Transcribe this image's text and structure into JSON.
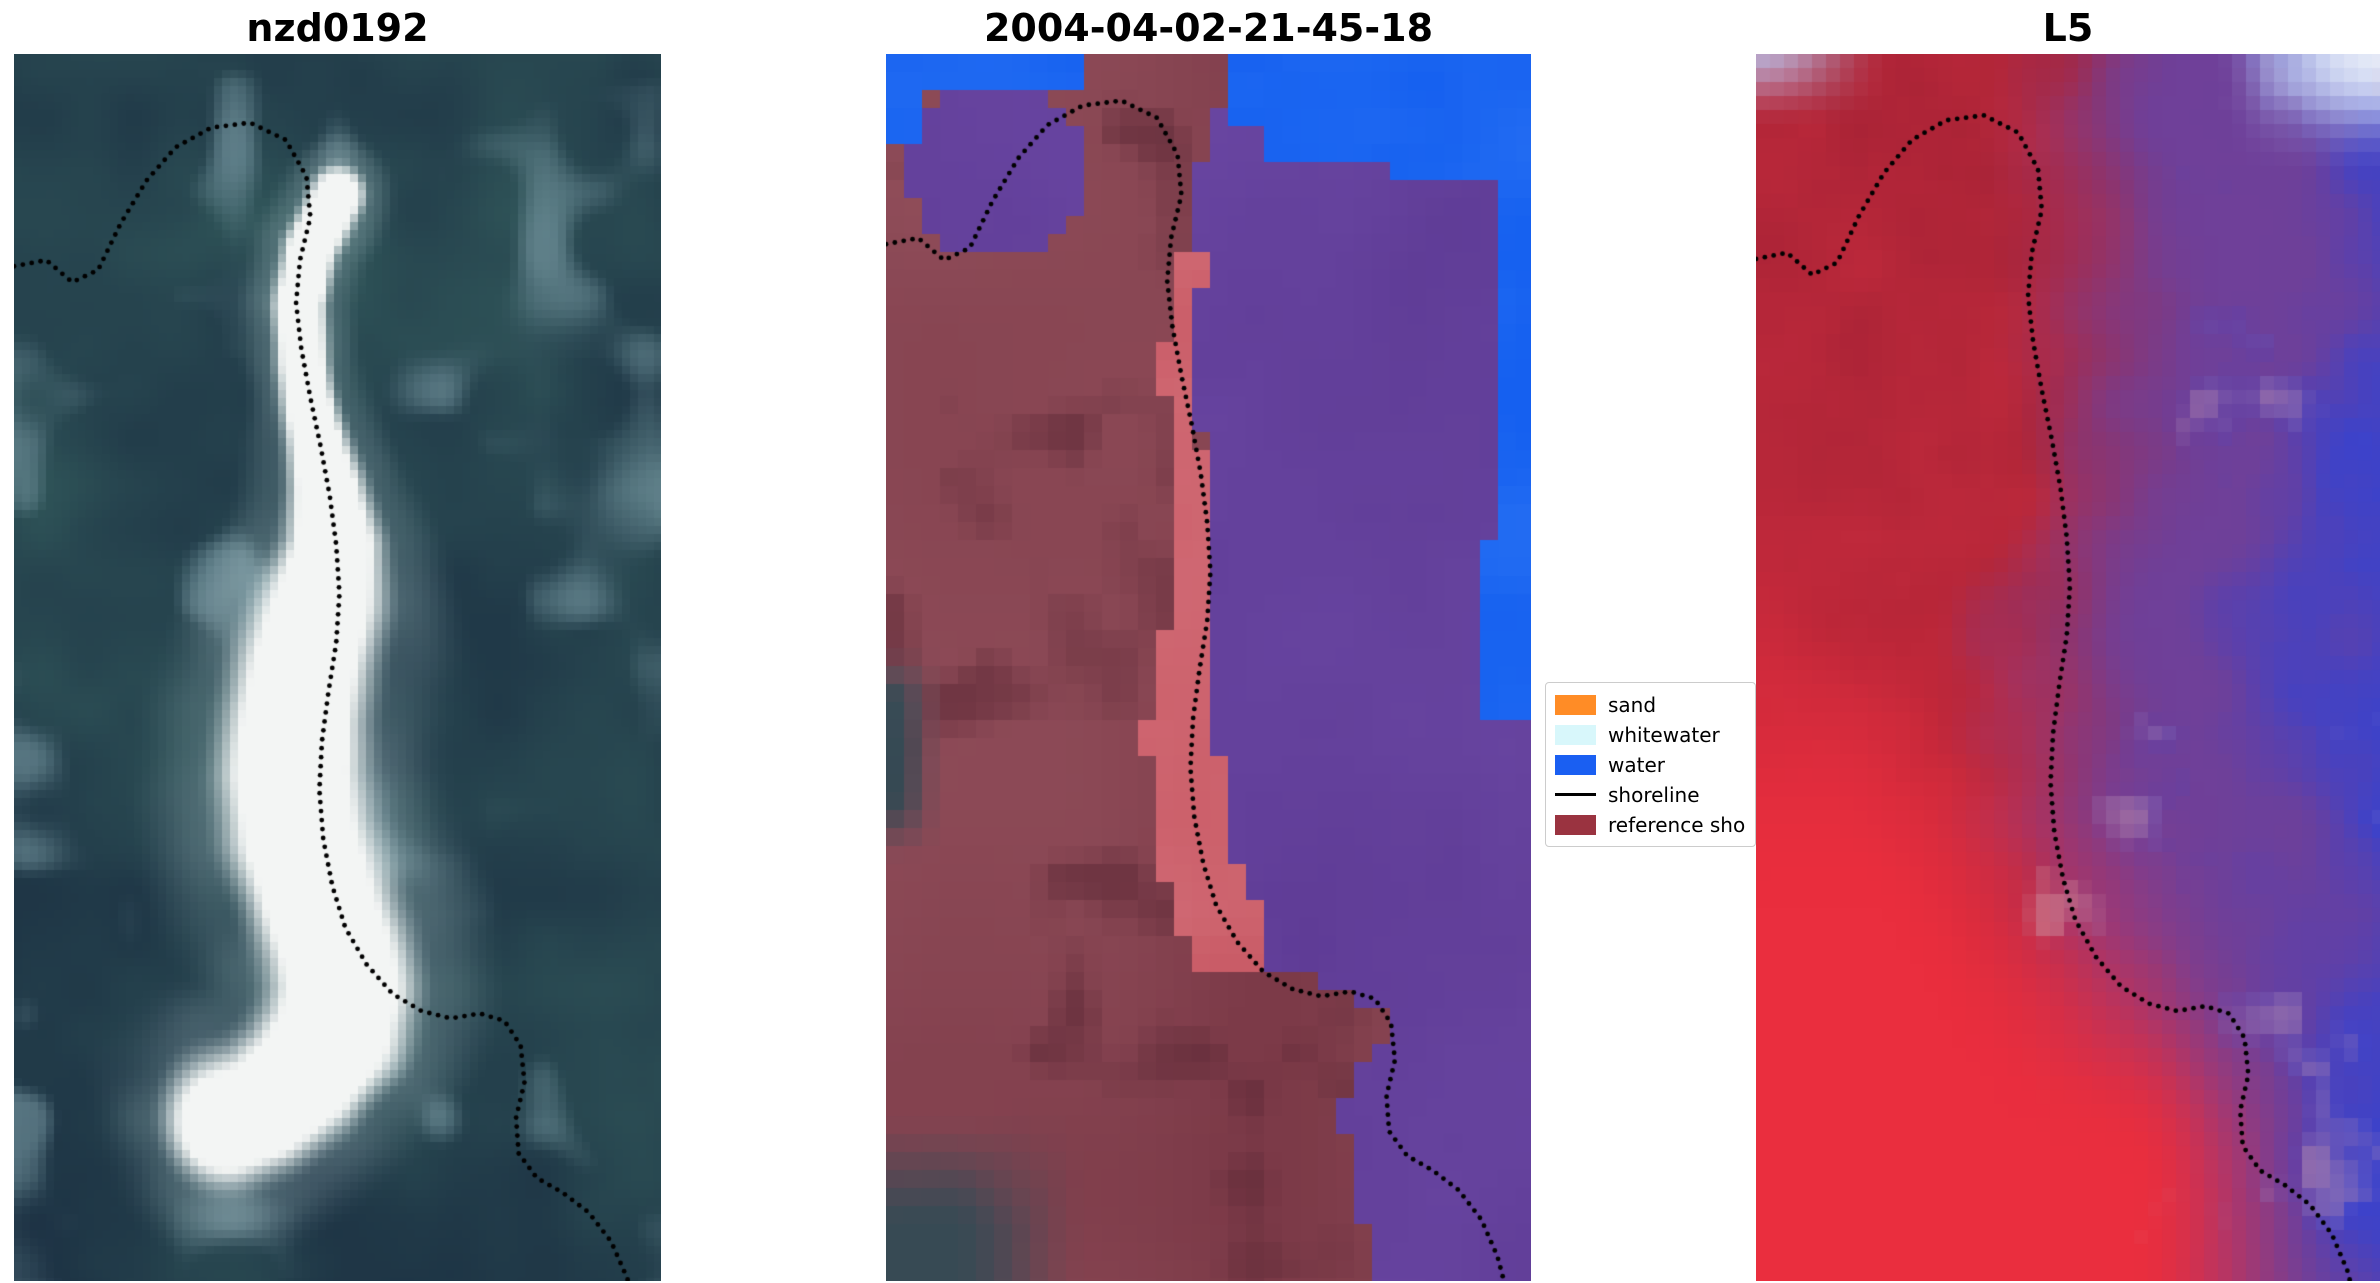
{
  "figure": {
    "background": "#ffffff",
    "title_color": "#000000",
    "panels": [
      {
        "id": "rgb",
        "title": "nzd0192",
        "kind": "rgb-satellite-image"
      },
      {
        "id": "classified",
        "title": "2004-04-02-21-45-18",
        "kind": "pixel-classification"
      },
      {
        "id": "l5",
        "title": "L5",
        "kind": "red-blue-composite"
      }
    ],
    "legend": {
      "items": [
        {
          "label": "sand",
          "color": "#ff8c26",
          "shape": "patch"
        },
        {
          "label": "whitewater",
          "color": "#d8f7fb",
          "shape": "patch"
        },
        {
          "label": "water",
          "color": "#1a5ff2",
          "shape": "patch"
        },
        {
          "label": "shoreline",
          "color": "#000000",
          "shape": "line"
        },
        {
          "label": "reference sho",
          "color": "#9a3340",
          "shape": "patch"
        }
      ]
    },
    "overlay": {
      "shoreline_style": "dotted",
      "shoreline_color": "#000000"
    }
  },
  "chart_data": {
    "type": "heatmap",
    "title": "",
    "panels": [
      {
        "title": "nzd0192",
        "description": "RGB satellite image of a pale sandbar in dark teal water, dotted detected-shoreline overlay"
      },
      {
        "title": "2004-04-02-21-45-18",
        "description": "classified scene: blue water (top right), purple lagoon mass, salmon sand strip, dark-red reference shoreline buffer, dotted shoreline"
      },
      {
        "title": "L5",
        "description": "Landsat 5 red-blue probability composite: red land (left/bottom), purple-blue water (right/top), dotted shoreline"
      }
    ],
    "legend": [
      "sand",
      "whitewater",
      "water",
      "shoreline",
      "reference sho"
    ],
    "legend_position": "between panel 2 and panel 3, vertically centered",
    "grid": false
  },
  "palettes": {
    "rgb": {
      "deep": "#1b2f42",
      "green": "#2e5257",
      "light": "#7596a0",
      "haze": "#a9c2c6",
      "sand": "#f3f5f4"
    },
    "classified": {
      "maroon": "#7c3a48",
      "maroon_dark": "#5e2a37",
      "rose": "#95525e",
      "salmon": "#c85964",
      "salmon_light": "#d4707a",
      "purple": "#5f3c96",
      "purple_light": "#6a47a3",
      "blue": "#1560f0",
      "teal": "#2e4b55"
    },
    "l5": {
      "red": "#c02a3c",
      "bright_red": "#ea2e3e",
      "dark_red": "#9e2033",
      "purple": "#6f4099",
      "blue": "#3343d4",
      "light_blue": "#b9c6ee",
      "white": "#e9edf8",
      "pink": "#d295a0"
    }
  }
}
